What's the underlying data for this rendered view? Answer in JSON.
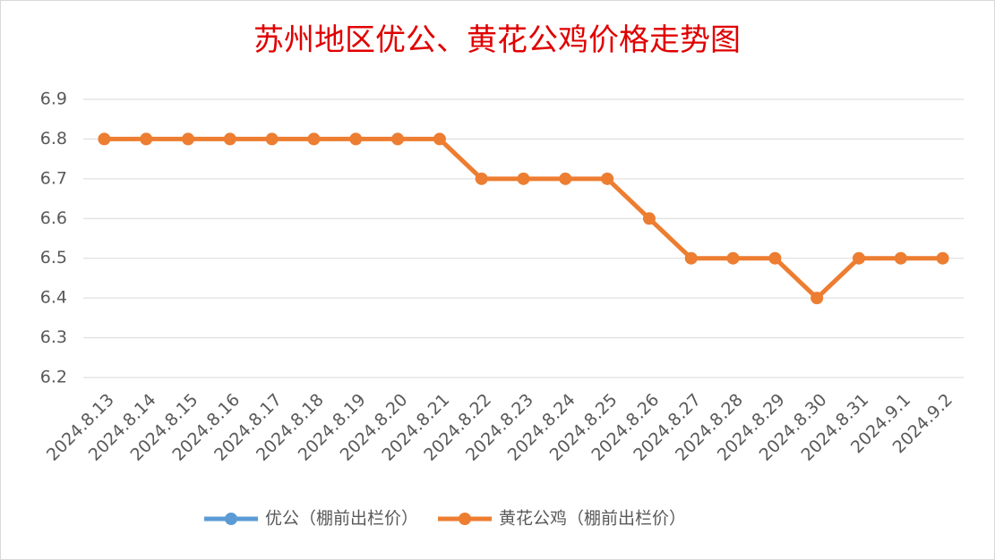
{
  "chart_data": {
    "type": "line",
    "title": "苏州地区优公、黄花公鸡价格走势图",
    "categories": [
      "2024.8.13",
      "2024.8.14",
      "2024.8.15",
      "2024.8.16",
      "2024.8.17",
      "2024.8.18",
      "2024.8.19",
      "2024.8.20",
      "2024.8.21",
      "2024.8.22",
      "2024.8.23",
      "2024.8.24",
      "2024.8.25",
      "2024.8.26",
      "2024.8.27",
      "2024.8.28",
      "2024.8.29",
      "2024.8.30",
      "2024.8.31",
      "2024.9.1",
      "2024.9.2"
    ],
    "series": [
      {
        "name": "优公（棚前出栏价）",
        "color": "#5b9bd5",
        "values": [
          null,
          null,
          null,
          null,
          null,
          null,
          null,
          null,
          null,
          null,
          null,
          null,
          null,
          null,
          null,
          null,
          null,
          null,
          null,
          null,
          null
        ]
      },
      {
        "name": "黄花公鸡（棚前出栏价）",
        "color": "#ed7d31",
        "values": [
          6.8,
          6.8,
          6.8,
          6.8,
          6.8,
          6.8,
          6.8,
          6.8,
          6.8,
          6.7,
          6.7,
          6.7,
          6.7,
          6.6,
          6.5,
          6.5,
          6.5,
          6.4,
          6.5,
          6.5,
          6.5
        ]
      }
    ],
    "ylim": [
      6.2,
      6.9
    ],
    "yticks": [
      6.2,
      6.3,
      6.4,
      6.5,
      6.6,
      6.7,
      6.8,
      6.9
    ],
    "grid": true,
    "legend": "bottom"
  }
}
